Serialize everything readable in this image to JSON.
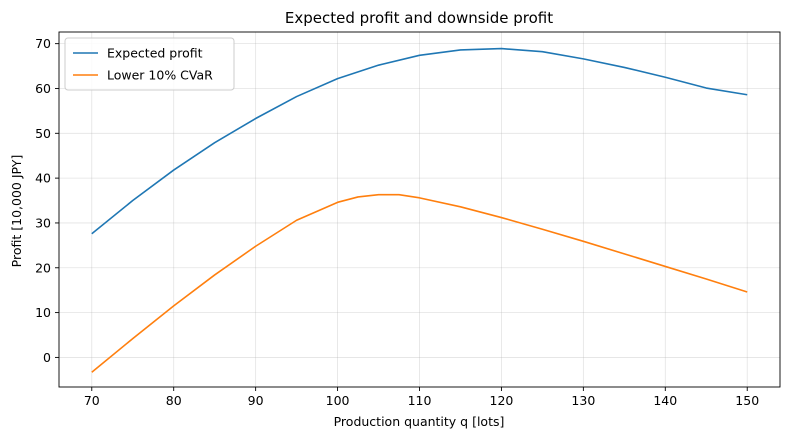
{
  "chart_data": {
    "type": "line",
    "title": "Expected profit and downside profit",
    "xlabel": "Production quantity q [lots]",
    "ylabel": "Profit [10,000 JPY]",
    "xlim": [
      66.0,
      154.0
    ],
    "ylim": [
      -6.6,
      72.6
    ],
    "xticks": [
      70,
      80,
      90,
      100,
      110,
      120,
      130,
      140,
      150
    ],
    "yticks": [
      0,
      10,
      20,
      30,
      40,
      50,
      60,
      70
    ],
    "grid": true,
    "legend_position": "top-left",
    "series": [
      {
        "name": "Expected profit",
        "color": "#1f77b4",
        "x": [
          70,
          75,
          80,
          85,
          90,
          95,
          100,
          105,
          110,
          115,
          120,
          125,
          130,
          135,
          140,
          145,
          150
        ],
        "y": [
          27.6,
          35.0,
          41.8,
          47.9,
          53.3,
          58.2,
          62.2,
          65.2,
          67.4,
          68.6,
          68.9,
          68.2,
          66.6,
          64.7,
          62.5,
          60.1,
          58.6
        ]
      },
      {
        "name": "Lower 10% CVaR",
        "color": "#ff7f0e",
        "x": [
          70,
          75,
          80,
          85,
          90,
          95,
          100,
          102.5,
          105,
          107.5,
          110,
          115,
          120,
          125,
          130,
          135,
          140,
          145,
          150
        ],
        "y": [
          -3.3,
          4.2,
          11.5,
          18.4,
          24.8,
          30.6,
          34.6,
          35.8,
          36.3,
          36.3,
          35.6,
          33.6,
          31.2,
          28.6,
          25.9,
          23.1,
          20.3,
          17.5,
          14.6
        ]
      }
    ]
  }
}
